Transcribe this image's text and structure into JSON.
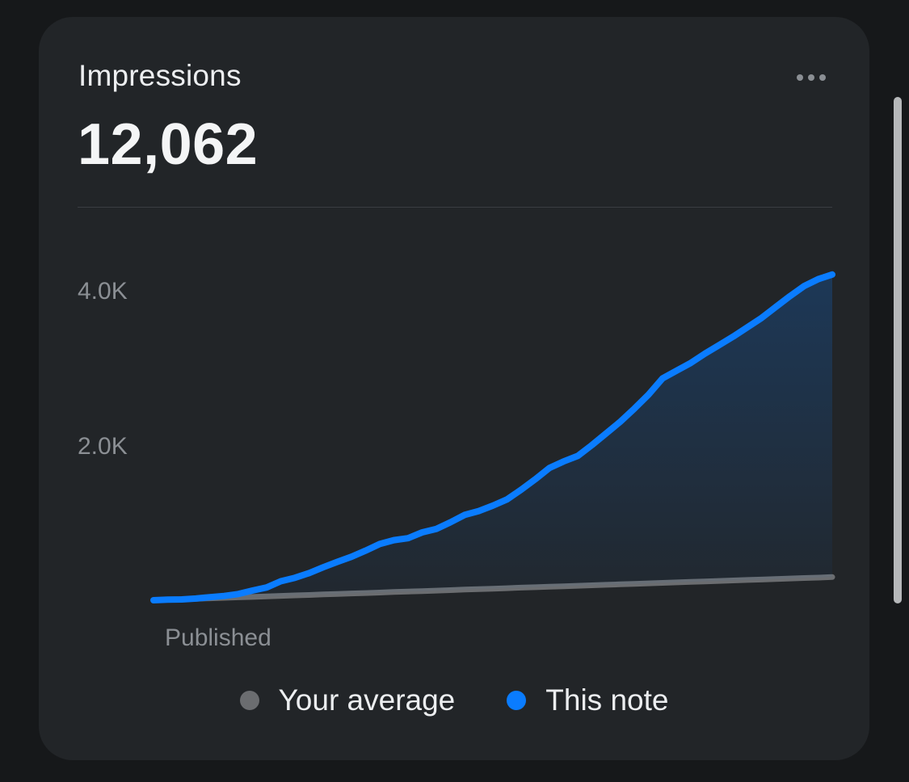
{
  "card": {
    "title": "Impressions",
    "value": "12,062",
    "more_icon": "ellipsis-icon"
  },
  "colors": {
    "this_note": "#0a7cff",
    "your_average": "#6b6d70",
    "tick_label": "#8b8f94",
    "card_bg": "#222528"
  },
  "chart_data": {
    "type": "area",
    "title": "",
    "xlabel": "",
    "ylabel": "",
    "x_tick_labels": [
      "Published"
    ],
    "y_ticks": [
      {
        "value": 4000,
        "label": "4.0K"
      },
      {
        "value": 2000,
        "label": "2.0K"
      }
    ],
    "ylim": [
      0,
      4500
    ],
    "grid": false,
    "legend_position": "bottom",
    "x": [
      0,
      1,
      2,
      3,
      4,
      5,
      6,
      7,
      8,
      9,
      10,
      11,
      12,
      13,
      14,
      15,
      16,
      17,
      18,
      19,
      20,
      21,
      22,
      23,
      24,
      25,
      26,
      27,
      28,
      29,
      30,
      31,
      32,
      33,
      34,
      35,
      36,
      37,
      38,
      39,
      40,
      41,
      42,
      43,
      44,
      45,
      46,
      47,
      48
    ],
    "series": [
      {
        "name": "This note",
        "color": "#0a7cff",
        "filled": true,
        "values": [
          0,
          8,
          10,
          22,
          40,
          55,
          80,
          125,
          165,
          245,
          290,
          350,
          425,
          495,
          560,
          640,
          725,
          775,
          800,
          875,
          920,
          1005,
          1100,
          1150,
          1220,
          1300,
          1425,
          1560,
          1705,
          1790,
          1860,
          2000,
          2150,
          2300,
          2470,
          2650,
          2860,
          2960,
          3060,
          3180,
          3290,
          3400,
          3520,
          3640,
          3780,
          3920,
          4050,
          4140,
          4200
        ]
      },
      {
        "name": "Your average",
        "color": "#6b6d70",
        "filled": false,
        "values": [
          0,
          6,
          12,
          19,
          25,
          31,
          37,
          43,
          50,
          56,
          62,
          68,
          75,
          81,
          87,
          93,
          99,
          106,
          112,
          118,
          124,
          130,
          137,
          143,
          149,
          155,
          162,
          168,
          174,
          180,
          186,
          193,
          199,
          205,
          211,
          218,
          224,
          230,
          236,
          242,
          249,
          255,
          261,
          267,
          274,
          280,
          286,
          292,
          299
        ]
      }
    ]
  },
  "legend": {
    "items": [
      {
        "label": "Your average",
        "color": "#6b6d70"
      },
      {
        "label": "This note",
        "color": "#0a7cff"
      }
    ]
  }
}
